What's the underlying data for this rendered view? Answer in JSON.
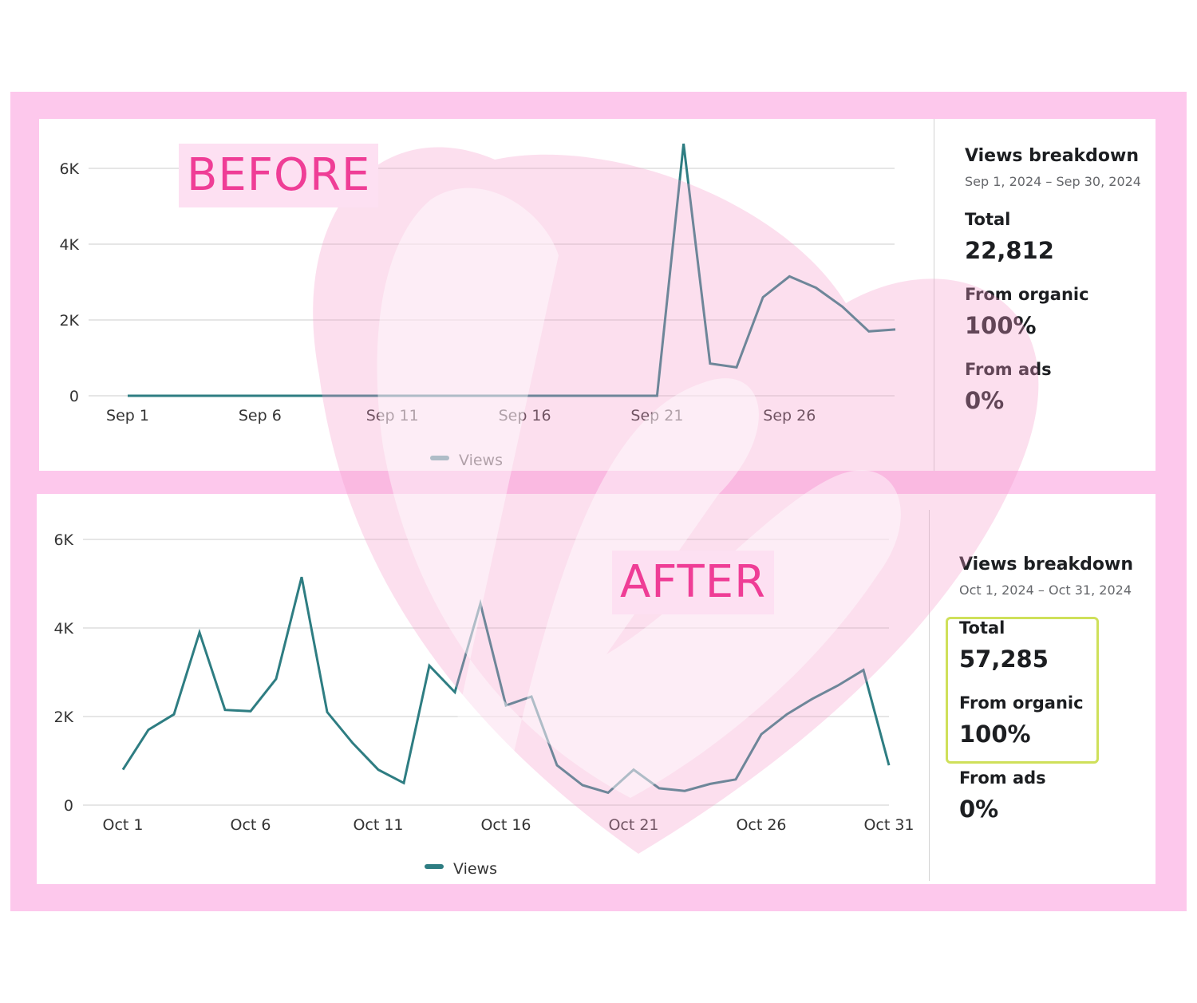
{
  "colors": {
    "frame": "#fdc8ec",
    "line": "#2e7d82",
    "label_text": "#ef3d96",
    "label_bg": "#fde0f2",
    "highlight_border": "#cfe05a"
  },
  "before": {
    "label": "BEFORE",
    "breakdown": {
      "title": "Views breakdown",
      "date_range": "Sep 1, 2024 – Sep 30, 2024",
      "total_label": "Total",
      "total_value": "22,812",
      "organic_label": "From organic",
      "organic_value": "100%",
      "ads_label": "From ads",
      "ads_value": "0%"
    }
  },
  "after": {
    "label": "AFTER",
    "breakdown": {
      "title": "Views breakdown",
      "date_range": "Oct 1, 2024 – Oct 31, 2024",
      "total_label": "Total",
      "total_value": "57,285",
      "organic_label": "From organic",
      "organic_value": "100%",
      "ads_label": "From ads",
      "ads_value": "0%"
    }
  },
  "chart_data": [
    {
      "type": "line",
      "x": [
        "Sep 1",
        "Sep 2",
        "Sep 3",
        "Sep 4",
        "Sep 5",
        "Sep 6",
        "Sep 7",
        "Sep 8",
        "Sep 9",
        "Sep 10",
        "Sep 11",
        "Sep 12",
        "Sep 13",
        "Sep 14",
        "Sep 15",
        "Sep 16",
        "Sep 17",
        "Sep 18",
        "Sep 19",
        "Sep 20",
        "Sep 21",
        "Sep 22",
        "Sep 23",
        "Sep 24",
        "Sep 25",
        "Sep 26",
        "Sep 27",
        "Sep 28",
        "Sep 29",
        "Sep 30"
      ],
      "x_tick_labels": [
        "Sep 1",
        "Sep 6",
        "Sep 11",
        "Sep 16",
        "Sep 21",
        "Sep 26"
      ],
      "y_tick_labels": [
        "0",
        "2K",
        "4K",
        "6K"
      ],
      "ylim": [
        0,
        6500
      ],
      "series": [
        {
          "name": "Views",
          "values": [
            0,
            0,
            0,
            0,
            0,
            0,
            0,
            0,
            0,
            0,
            0,
            0,
            0,
            0,
            0,
            0,
            0,
            0,
            0,
            0,
            0,
            6650,
            850,
            750,
            2600,
            3150,
            2850,
            2350,
            1700,
            1750
          ]
        }
      ],
      "legend": "bottom-center",
      "grid": true
    },
    {
      "type": "line",
      "x": [
        "Oct 1",
        "Oct 2",
        "Oct 3",
        "Oct 4",
        "Oct 5",
        "Oct 6",
        "Oct 7",
        "Oct 8",
        "Oct 9",
        "Oct 10",
        "Oct 11",
        "Oct 12",
        "Oct 13",
        "Oct 14",
        "Oct 15",
        "Oct 16",
        "Oct 17",
        "Oct 18",
        "Oct 19",
        "Oct 20",
        "Oct 21",
        "Oct 22",
        "Oct 23",
        "Oct 24",
        "Oct 25",
        "Oct 26",
        "Oct 27",
        "Oct 28",
        "Oct 29",
        "Oct 30",
        "Oct 31"
      ],
      "x_tick_labels": [
        "Oct 1",
        "Oct 6",
        "Oct 11",
        "Oct 16",
        "Oct 21",
        "Oct 26",
        "Oct 31"
      ],
      "y_tick_labels": [
        "0",
        "2K",
        "4K",
        "6K"
      ],
      "ylim": [
        0,
        6000
      ],
      "series": [
        {
          "name": "Views",
          "values": [
            800,
            1700,
            2050,
            3900,
            2150,
            2120,
            2850,
            5150,
            2100,
            1400,
            800,
            500,
            3150,
            2550,
            4550,
            2250,
            2450,
            900,
            450,
            280,
            800,
            380,
            320,
            480,
            580,
            1600,
            2050,
            2400,
            2700,
            3050,
            900
          ]
        }
      ],
      "legend": "bottom-center",
      "grid": true
    }
  ]
}
